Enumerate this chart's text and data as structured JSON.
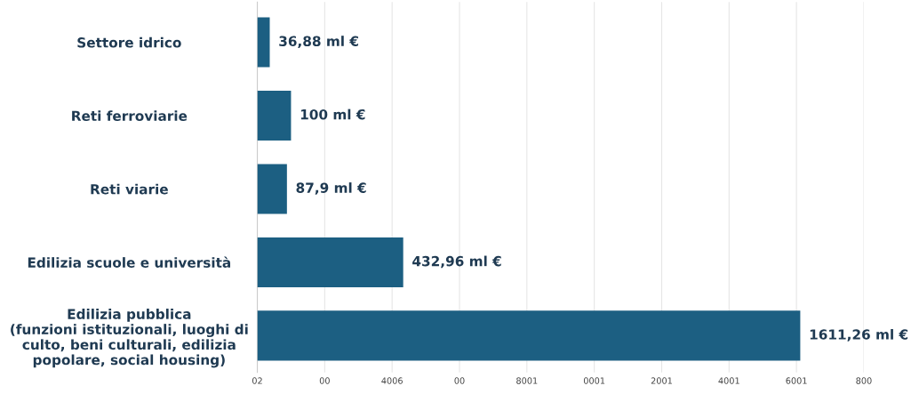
{
  "chart_data": {
    "type": "bar",
    "orientation": "horizontal",
    "categories": [
      "Settore idrico",
      "Reti ferroviarie",
      "Reti viarie",
      "Edilizia scuole e università",
      "Edilizia pubblica\n(funzioni istituzionali, luoghi di\nculto, beni culturali, edilizia\npopolare, social housing)"
    ],
    "values": [
      36.88,
      100,
      87.9,
      432.96,
      1611.26
    ],
    "value_labels": [
      "36,88 ml €",
      "100 ml €",
      "87,9 ml €",
      "432,96 ml €",
      "1611,26 ml €"
    ],
    "color": "#1c5f82",
    "xlim": [
      0,
      1800
    ],
    "xticks": [
      {
        "value": 0,
        "label": null
      },
      {
        "value": 200,
        "label": null
      },
      {
        "value": 400,
        "label": null
      },
      {
        "value": 600,
        "label": null
      },
      {
        "value": 800,
        "label": null
      },
      {
        "value": 1000,
        "label": null
      },
      {
        "value": 1200,
        "label": null
      },
      {
        "value": 1400,
        "label": null
      },
      {
        "value": 1600,
        "label": null
      },
      {
        "value": 1800,
        "label": null
      }
    ],
    "annotations": [
      "02",
      "00",
      "4006",
      "00",
      "8001",
      "0001",
      "2001",
      "4001",
      "6001",
      "800"
    ],
    "grid": "x"
  }
}
